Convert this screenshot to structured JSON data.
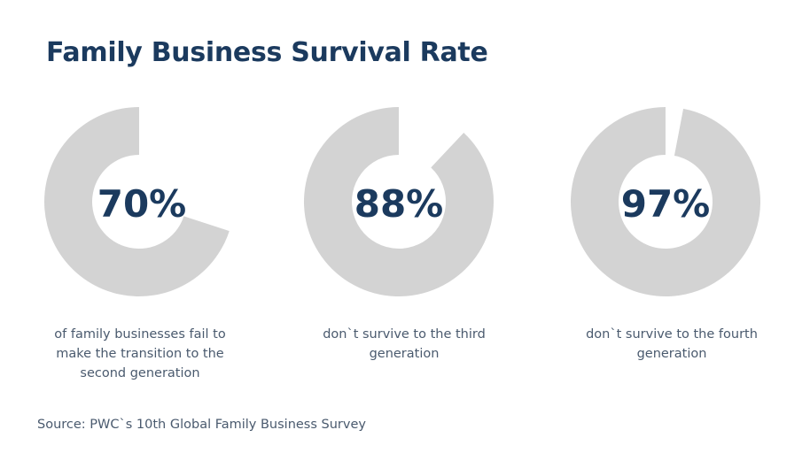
{
  "title": "Family Business Survival Rate",
  "chart_data": {
    "type": "pie",
    "charts": [
      {
        "label": "70%",
        "value": 70,
        "caption": "of family businesses fail to make the transition to the second generation"
      },
      {
        "label": "88%",
        "value": 88,
        "caption": "don`t survive to the third generation"
      },
      {
        "label": "97%",
        "value": 97,
        "caption": "don`t survive to the fourth generation"
      }
    ]
  },
  "source": "Source: PWC`s 10th Global Family Business Survey",
  "colors": {
    "ring": "#d3d3d3",
    "text_dark": "#1b3a5e",
    "text_body": "#4a5a6e",
    "background": "#ffffff"
  }
}
